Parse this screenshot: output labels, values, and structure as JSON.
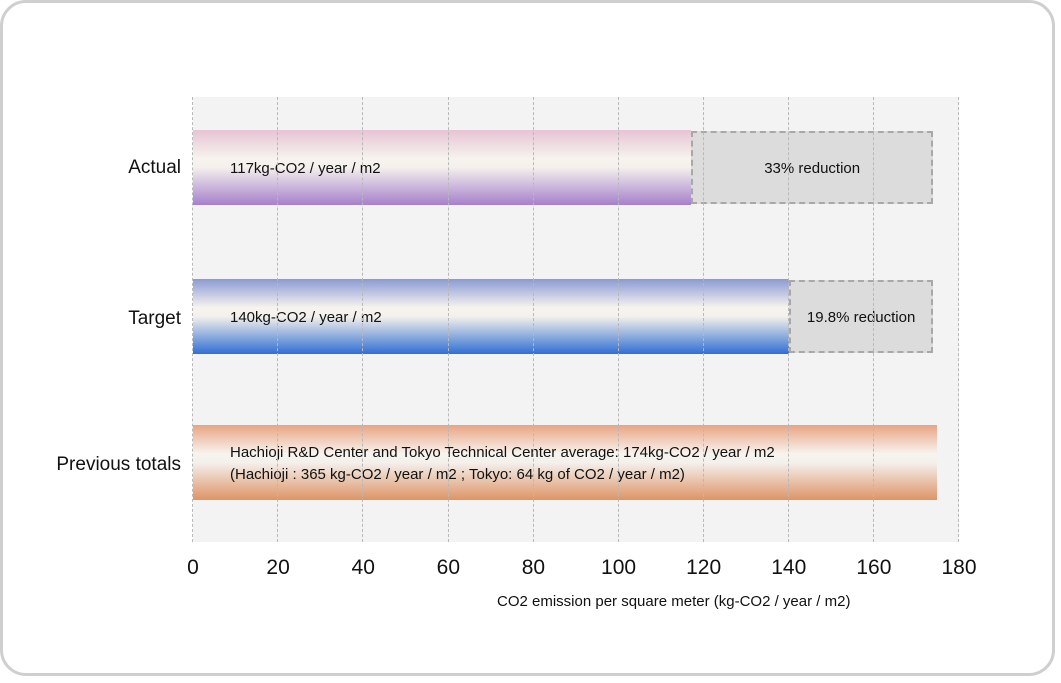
{
  "chart_data": {
    "type": "bar",
    "orientation": "horizontal",
    "xlim": [
      0,
      180
    ],
    "ticks": [
      0,
      20,
      40,
      60,
      80,
      100,
      120,
      140,
      160,
      180
    ],
    "tick_labels": [
      "0",
      "20",
      "40",
      "60",
      "80",
      "100",
      "120",
      "140",
      "160",
      "180"
    ],
    "xlabel": "CO2 emission per square meter (kg-CO2 / year / m2)",
    "grid": "vertical dashed",
    "baseline_value": 174,
    "bars": [
      {
        "category": "Actual",
        "value": 117,
        "label": "117kg-CO2 / year / m2",
        "reduction_label": "33% reduction",
        "color_top": "#e6c4d4",
        "color_bottom": "#a57fcc"
      },
      {
        "category": "Target",
        "value": 140,
        "label": "140kg-CO2 / year / m2",
        "reduction_label": "19.8% reduction",
        "color_top": "#8a9ad4",
        "color_bottom": "#2f6fd4"
      },
      {
        "category": "Previous totals",
        "value": 174,
        "label_line1": "Hachioji R&D Center and Tokyo Technical Center average: 174kg-CO2 / year / m2",
        "label_line2": "(Hachioji : 365 kg-CO2 / year / m2 ; Tokyo: 64 kg of CO2 / year / m2)",
        "color_top": "#e8a482",
        "color_bottom": "#de9466"
      }
    ]
  }
}
